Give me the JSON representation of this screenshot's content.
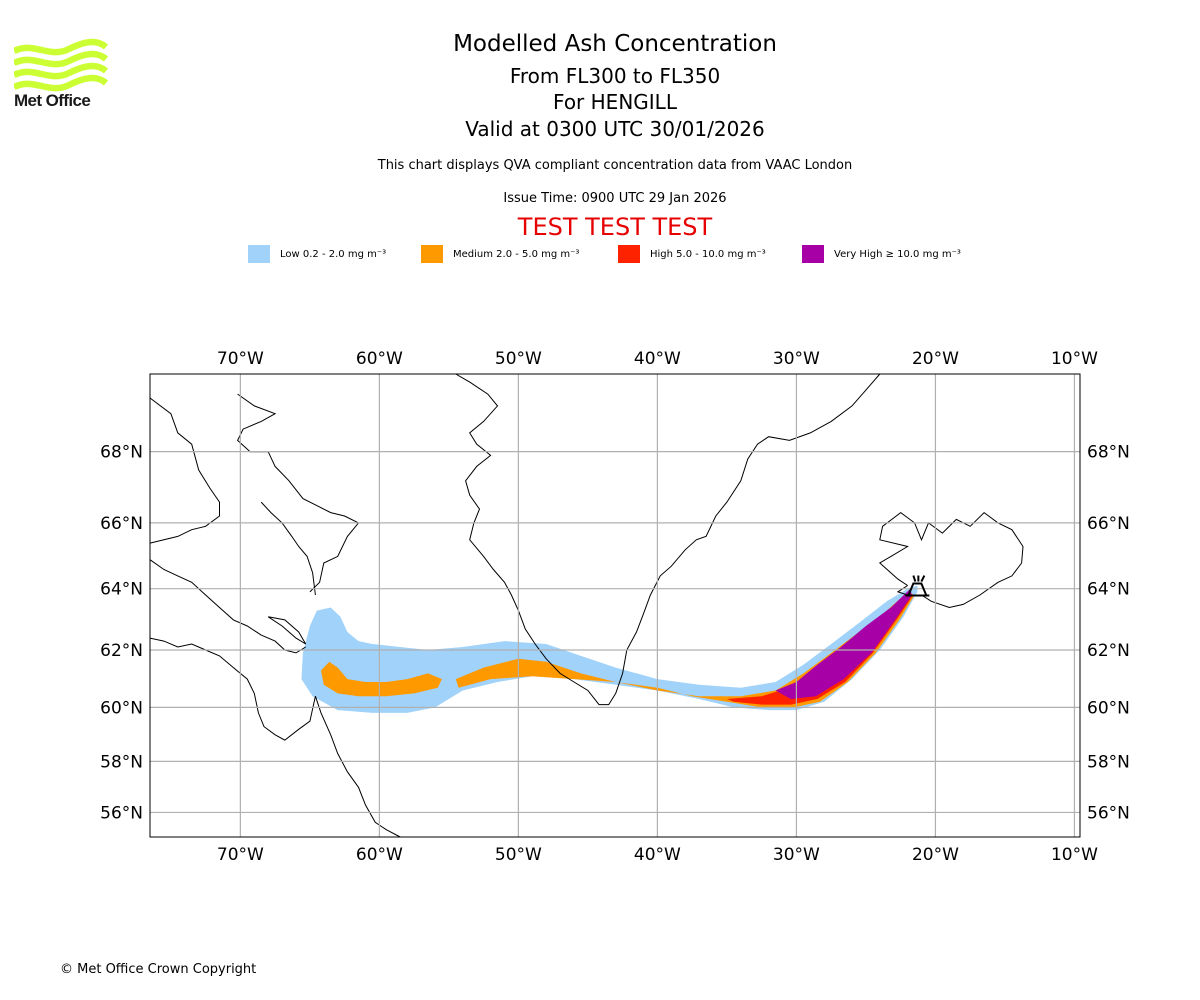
{
  "logo": {
    "name": "Met Office",
    "icon": "met-office-waves-logo",
    "color": "#ccff33"
  },
  "header": {
    "title": "Modelled Ash Concentration",
    "level": "From FL300 to FL350",
    "volcano": "For HENGILL",
    "valid": "Valid at 0300 UTC 30/01/2026",
    "description": "This chart displays QVA compliant concentration data from VAAC London",
    "issue_time": "Issue Time: 0900 UTC 29 Jan 2026",
    "test_banner": "TEST TEST TEST",
    "test_color": "#e60000"
  },
  "legend": [
    {
      "label": "Low 0.2 - 2.0 mg m⁻³",
      "color": "#a0d2fa",
      "min": 0.2,
      "max": 2.0
    },
    {
      "label": "Medium 2.0 - 5.0 mg m⁻³",
      "color": "#ff9900",
      "min": 2.0,
      "max": 5.0
    },
    {
      "label": "High 5.0 - 10.0 mg m⁻³",
      "color": "#ff2200",
      "min": 5.0,
      "max": 10.0
    },
    {
      "label": "Very High ≥ 10.0 mg m⁻³",
      "color": "#a600a6",
      "min": 10.0,
      "max": null
    }
  ],
  "map": {
    "projection": "Mercator",
    "extent": {
      "lon_min": -76.5,
      "lon_max": -9.6,
      "lat_min": 55.0,
      "lat_max": 70.0
    },
    "lon_ticks": [
      {
        "lon": -70,
        "label": "70°W"
      },
      {
        "lon": -60,
        "label": "60°W"
      },
      {
        "lon": -50,
        "label": "50°W"
      },
      {
        "lon": -40,
        "label": "40°W"
      },
      {
        "lon": -30,
        "label": "30°W"
      },
      {
        "lon": -20,
        "label": "20°W"
      },
      {
        "lon": -10,
        "label": "10°W"
      }
    ],
    "lat_ticks": [
      {
        "lat": 68,
        "label": "68°N"
      },
      {
        "lat": 66,
        "label": "66°N"
      },
      {
        "lat": 64,
        "label": "64°N"
      },
      {
        "lat": 62,
        "label": "62°N"
      },
      {
        "lat": 60,
        "label": "60°N"
      },
      {
        "lat": 58,
        "label": "58°N"
      },
      {
        "lat": 56,
        "label": "56°N"
      }
    ],
    "grid": true,
    "volcano_marker": {
      "name": "HENGILL",
      "lon": -21.3,
      "lat": 64.1,
      "icon": "volcano-icon"
    },
    "ash_layers": [
      {
        "level": "Low",
        "color": "#a0d2fa",
        "outline": [
          [
            -65.5,
            61.9
          ],
          [
            -65.0,
            62.8
          ],
          [
            -64.5,
            63.3
          ],
          [
            -63.5,
            63.4
          ],
          [
            -62.8,
            63.1
          ],
          [
            -62.3,
            62.6
          ],
          [
            -61.5,
            62.3
          ],
          [
            -60.5,
            62.2
          ],
          [
            -58.5,
            62.1
          ],
          [
            -56.5,
            62.0
          ],
          [
            -54.0,
            62.1
          ],
          [
            -51.0,
            62.3
          ],
          [
            -48.0,
            62.2
          ],
          [
            -45.5,
            61.8
          ],
          [
            -43.0,
            61.4
          ],
          [
            -40.0,
            61.0
          ],
          [
            -37.0,
            60.8
          ],
          [
            -34.0,
            60.7
          ],
          [
            -31.5,
            60.9
          ],
          [
            -29.5,
            61.5
          ],
          [
            -27.5,
            62.2
          ],
          [
            -25.5,
            62.9
          ],
          [
            -23.5,
            63.6
          ],
          [
            -22.0,
            64.0
          ],
          [
            -21.3,
            64.1
          ],
          [
            -21.3,
            63.9
          ],
          [
            -22.3,
            63.1
          ],
          [
            -24.0,
            62.0
          ],
          [
            -26.0,
            61.0
          ],
          [
            -28.0,
            60.2
          ],
          [
            -30.0,
            59.9
          ],
          [
            -32.0,
            59.9
          ],
          [
            -34.5,
            60.0
          ],
          [
            -37.0,
            60.3
          ],
          [
            -40.0,
            60.6
          ],
          [
            -43.0,
            60.8
          ],
          [
            -46.0,
            61.0
          ],
          [
            -49.0,
            61.1
          ],
          [
            -51.5,
            60.9
          ],
          [
            -54.0,
            60.6
          ],
          [
            -56.0,
            60.0
          ],
          [
            -58.0,
            59.8
          ],
          [
            -60.5,
            59.8
          ],
          [
            -63.0,
            59.9
          ],
          [
            -64.8,
            60.4
          ],
          [
            -65.6,
            61.0
          ]
        ]
      },
      {
        "level": "Medium",
        "color": "#ff9900",
        "outline": [
          [
            -64.2,
            61.3
          ],
          [
            -63.6,
            61.6
          ],
          [
            -63.0,
            61.4
          ],
          [
            -62.3,
            61.0
          ],
          [
            -61.0,
            60.9
          ],
          [
            -59.5,
            60.9
          ],
          [
            -58.0,
            61.0
          ],
          [
            -56.5,
            61.2
          ],
          [
            -55.5,
            61.0
          ],
          [
            -55.8,
            60.7
          ],
          [
            -57.5,
            60.5
          ],
          [
            -59.5,
            60.4
          ],
          [
            -61.5,
            60.4
          ],
          [
            -63.0,
            60.5
          ],
          [
            -64.0,
            60.8
          ]
        ]
      },
      {
        "level": "Medium",
        "color": "#ff9900",
        "outline": [
          [
            -54.5,
            61.0
          ],
          [
            -52.5,
            61.4
          ],
          [
            -50.0,
            61.7
          ],
          [
            -48.0,
            61.6
          ],
          [
            -45.5,
            61.2
          ],
          [
            -43.0,
            60.9
          ],
          [
            -40.0,
            60.6
          ],
          [
            -37.0,
            60.4
          ],
          [
            -34.0,
            60.4
          ],
          [
            -31.5,
            60.6
          ],
          [
            -29.5,
            61.2
          ],
          [
            -27.5,
            61.9
          ],
          [
            -25.5,
            62.6
          ],
          [
            -23.5,
            63.3
          ],
          [
            -22.0,
            63.9
          ],
          [
            -21.5,
            63.8
          ],
          [
            -22.6,
            63.0
          ],
          [
            -24.3,
            61.9
          ],
          [
            -26.3,
            60.9
          ],
          [
            -28.3,
            60.2
          ],
          [
            -30.2,
            60.0
          ],
          [
            -32.5,
            60.0
          ],
          [
            -35.0,
            60.2
          ],
          [
            -37.5,
            60.4
          ],
          [
            -40.0,
            60.7
          ],
          [
            -43.0,
            60.9
          ],
          [
            -46.0,
            61.0
          ],
          [
            -49.0,
            61.1
          ],
          [
            -52.0,
            61.0
          ],
          [
            -54.3,
            60.7
          ]
        ]
      },
      {
        "level": "High",
        "color": "#ff2200",
        "outline": [
          [
            -35.0,
            60.3
          ],
          [
            -32.5,
            60.4
          ],
          [
            -30.5,
            60.7
          ],
          [
            -29.0,
            61.2
          ],
          [
            -27.2,
            61.9
          ],
          [
            -25.3,
            62.6
          ],
          [
            -23.4,
            63.3
          ],
          [
            -21.9,
            63.9
          ],
          [
            -21.6,
            63.8
          ],
          [
            -22.8,
            63.0
          ],
          [
            -24.5,
            61.9
          ],
          [
            -26.5,
            60.9
          ],
          [
            -28.5,
            60.3
          ],
          [
            -30.4,
            60.1
          ],
          [
            -32.5,
            60.1
          ],
          [
            -34.5,
            60.2
          ]
        ]
      },
      {
        "level": "Very High",
        "color": "#a600a6",
        "outline": [
          [
            -31.5,
            60.6
          ],
          [
            -30.0,
            60.9
          ],
          [
            -28.5,
            61.5
          ],
          [
            -26.8,
            62.1
          ],
          [
            -25.0,
            62.8
          ],
          [
            -23.2,
            63.4
          ],
          [
            -21.8,
            64.0
          ],
          [
            -21.7,
            63.8
          ],
          [
            -22.9,
            63.0
          ],
          [
            -24.6,
            61.9
          ],
          [
            -26.6,
            61.0
          ],
          [
            -28.6,
            60.4
          ],
          [
            -30.4,
            60.3
          ]
        ]
      }
    ]
  },
  "footer": {
    "copyright": "© Met Office Crown Copyright"
  }
}
